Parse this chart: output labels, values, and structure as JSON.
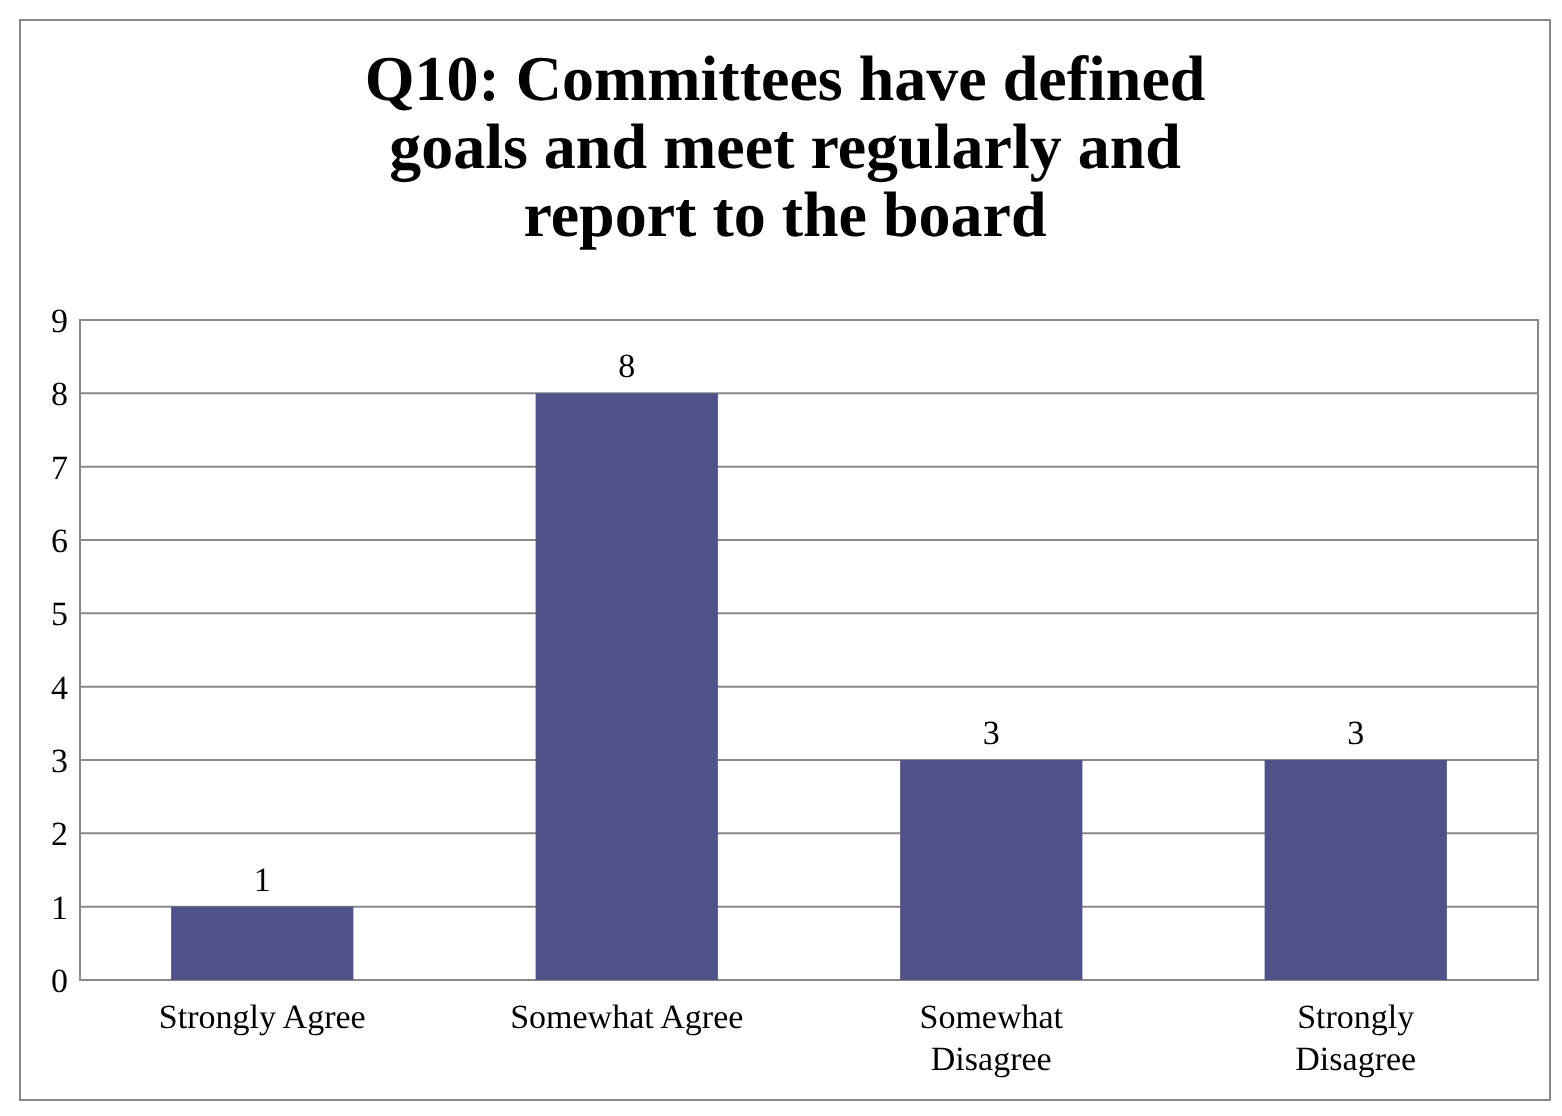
{
  "chart_data": {
    "type": "bar",
    "title": "Q10: Committees have defined goals and meet regularly and report to the board",
    "categories": [
      "Strongly Agree",
      "Somewhat Agree",
      "Somewhat Disagree",
      "Strongly Disagree"
    ],
    "values": [
      1,
      8,
      3,
      3
    ],
    "color": "#4f5189",
    "ylim": [
      0,
      9
    ],
    "yticks": [
      0,
      1,
      2,
      3,
      4,
      5,
      6,
      7,
      8,
      9
    ],
    "grid": "y",
    "data_labels": true
  }
}
